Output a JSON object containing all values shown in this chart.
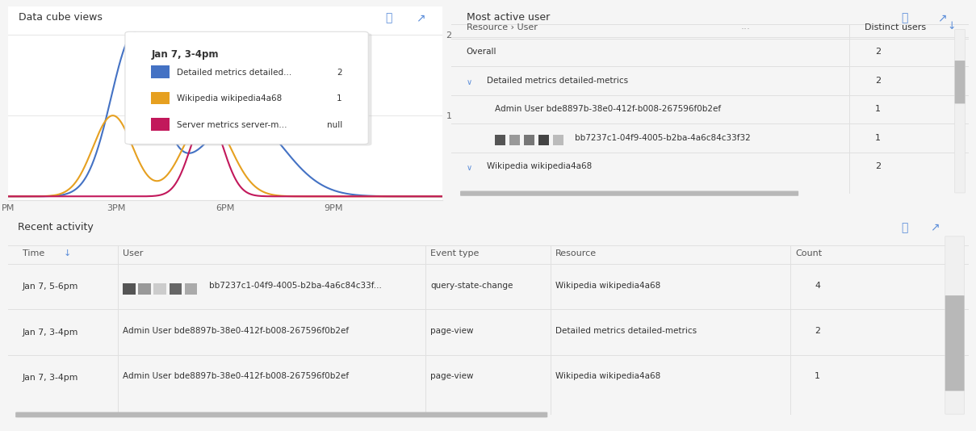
{
  "bg_color": "#f5f5f5",
  "panel_bg": "#ffffff",
  "border_color": "#e0e0e0",
  "title_color": "#333333",
  "text_color": "#333333",
  "light_text": "#888888",
  "blue_color": "#4472c4",
  "orange_color": "#e6a020",
  "pink_color": "#c2185b",
  "icon_color": "#5b8dd9",
  "scrollbar_color": "#b8b8b8",
  "panel1_title": "Data cube views",
  "panel2_title": "Most active user",
  "panel3_title": "Recent activity",
  "tooltip_title": "Jan 7, 3-4pm",
  "tooltip_items": [
    {
      "label": "Detailed metrics detailed...",
      "value": "2",
      "color": "#4472c4"
    },
    {
      "label": "Wikipedia wikipedia4a68",
      "value": "1",
      "color": "#e6a020"
    },
    {
      "label": "Server metrics server-m...",
      "value": "null",
      "color": "#c2185b"
    }
  ],
  "table1_col1": "Resource › User",
  "table1_col2": "Distinct users",
  "table1_rows": [
    {
      "indent": 0,
      "label": "Overall",
      "value": "2",
      "expandable": false,
      "has_avatar": false
    },
    {
      "indent": 0,
      "label": "Detailed metrics detailed-metrics",
      "value": "2",
      "expandable": true,
      "has_avatar": false
    },
    {
      "indent": 1,
      "label": "Admin User bde8897b-38e0-412f-b008-267596f0b2ef",
      "value": "1",
      "expandable": false,
      "has_avatar": false
    },
    {
      "indent": 1,
      "label": "bb7237c1-04f9-4005-b2ba-4a6c84c33f32",
      "value": "1",
      "expandable": false,
      "has_avatar": true
    },
    {
      "indent": 0,
      "label": "Wikipedia wikipedia4a68",
      "value": "2",
      "expandable": true,
      "has_avatar": false
    }
  ],
  "table2_headers": [
    "Time",
    "User",
    "Event type",
    "Resource",
    "Count"
  ],
  "table2_rows": [
    {
      "time": "Jan 7, 5-6pm",
      "user": "bb7237c1-04f9-4005-b2ba-4a6c84c33f...",
      "event_type": "query-state-change",
      "resource": "Wikipedia wikipedia4a68",
      "count": "4",
      "has_avatar": true
    },
    {
      "time": "Jan 7, 3-4pm",
      "user": "Admin User bde8897b-38e0-412f-b008-267596f0b2ef",
      "event_type": "page-view",
      "resource": "Detailed metrics detailed-metrics",
      "count": "2",
      "has_avatar": false
    },
    {
      "time": "Jan 7, 3-4pm",
      "user": "Admin User bde8897b-38e0-412f-b008-267596f0b2ef",
      "event_type": "page-view",
      "resource": "Wikipedia wikipedia4a68",
      "count": "1",
      "has_avatar": false
    }
  ]
}
